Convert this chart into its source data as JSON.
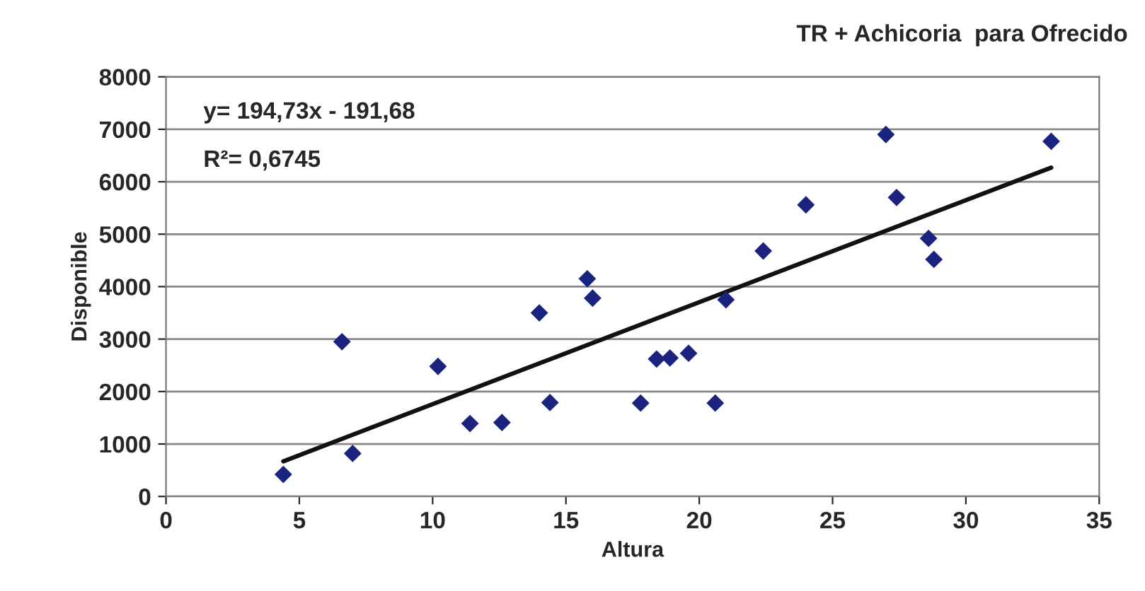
{
  "chart_data": {
    "type": "scatter",
    "title": "TR + Achicoria  para Ofrecido",
    "xlabel": "Altura",
    "ylabel": "Disponible",
    "xlim": [
      0,
      35
    ],
    "xticks": [
      0,
      5,
      10,
      15,
      20,
      25,
      30,
      35
    ],
    "ylim": [
      0,
      8000
    ],
    "yticks": [
      0,
      1000,
      2000,
      3000,
      4000,
      5000,
      6000,
      7000,
      8000
    ],
    "grid": "y",
    "legend": false,
    "marker": "diamond",
    "annotations": [
      "y= 194,73x - 191,68",
      "R²= 0,6745"
    ],
    "series": [
      {
        "color": "#1a237e",
        "x": [
          4.4,
          6.6,
          7.0,
          10.2,
          11.4,
          12.6,
          14.0,
          14.4,
          15.8,
          16.0,
          17.8,
          18.4,
          18.9,
          19.6,
          20.6,
          21.0,
          22.4,
          24.0,
          27.0,
          27.4,
          28.6,
          28.8,
          33.2
        ],
        "values": [
          420,
          2950,
          820,
          2480,
          1390,
          1410,
          3500,
          1790,
          4150,
          3780,
          1780,
          2620,
          2640,
          2730,
          1780,
          3750,
          4680,
          5560,
          6900,
          5700,
          4920,
          4520,
          6770
        ]
      },
      {
        "type": "line",
        "color": "#111111",
        "line_style": "solid",
        "marker": "none",
        "x": [
          4.4,
          33.2
        ],
        "values": [
          670,
          6270
        ]
      }
    ]
  }
}
